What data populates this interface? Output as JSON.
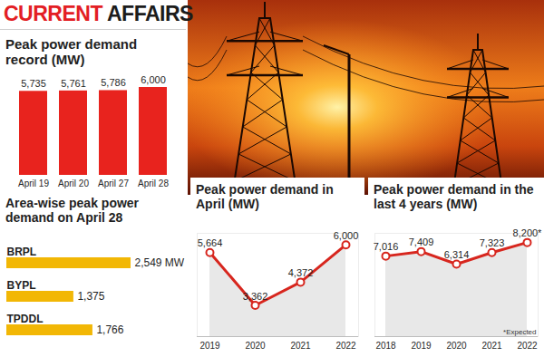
{
  "header": {
    "title": [
      "CURRENT",
      "AFFAIRS"
    ]
  },
  "chart_data": [
    {
      "type": "bar",
      "title": "Peak power demand record (MW)",
      "categories": [
        "April 19",
        "April 20",
        "April 27",
        "April 28"
      ],
      "values": [
        5735,
        5761,
        5786,
        6000
      ],
      "value_labels": [
        "5,735",
        "5,761",
        "5,786",
        "6,000"
      ],
      "color": "#e8231e",
      "ylim": [
        0,
        6000
      ],
      "data_labels": true,
      "tick_labels": "x"
    },
    {
      "type": "bar",
      "orientation": "horizontal",
      "title": "Area-wise peak power demand on April 28",
      "categories": [
        "BRPL",
        "BYPL",
        "TPDDL"
      ],
      "values": [
        2549,
        1375,
        1766
      ],
      "value_labels": [
        "2,549 MW",
        "1,375",
        "1,766"
      ],
      "color": "#f2b705",
      "xlim": [
        0,
        2549
      ],
      "data_labels": true,
      "tick_labels": "y"
    },
    {
      "type": "line",
      "title": "Peak power demand in April (MW)",
      "categories": [
        "2019",
        "2020",
        "2021",
        "2022"
      ],
      "values": [
        5664,
        3362,
        4372,
        6000
      ],
      "value_labels": [
        "5,664",
        "3,362",
        "4,372",
        "6,000"
      ],
      "color": "#d7261e",
      "marker": "circle",
      "ylim": [
        2000,
        6500
      ],
      "data_labels": true,
      "tick_labels": "x"
    },
    {
      "type": "line",
      "title": "Peak power demand in the last 4 years (MW)",
      "categories": [
        "2018",
        "2019",
        "2020",
        "2021",
        "2022"
      ],
      "values": [
        7016,
        7409,
        6314,
        7323,
        8200
      ],
      "value_labels": [
        "7,016",
        "7,409",
        "6,314",
        "7,323",
        "8,200*"
      ],
      "annotations": [
        "*Expected"
      ],
      "color": "#d7261e",
      "marker": "circle",
      "ylim": [
        0,
        9000
      ],
      "data_labels": true,
      "tick_labels": "x"
    }
  ]
}
